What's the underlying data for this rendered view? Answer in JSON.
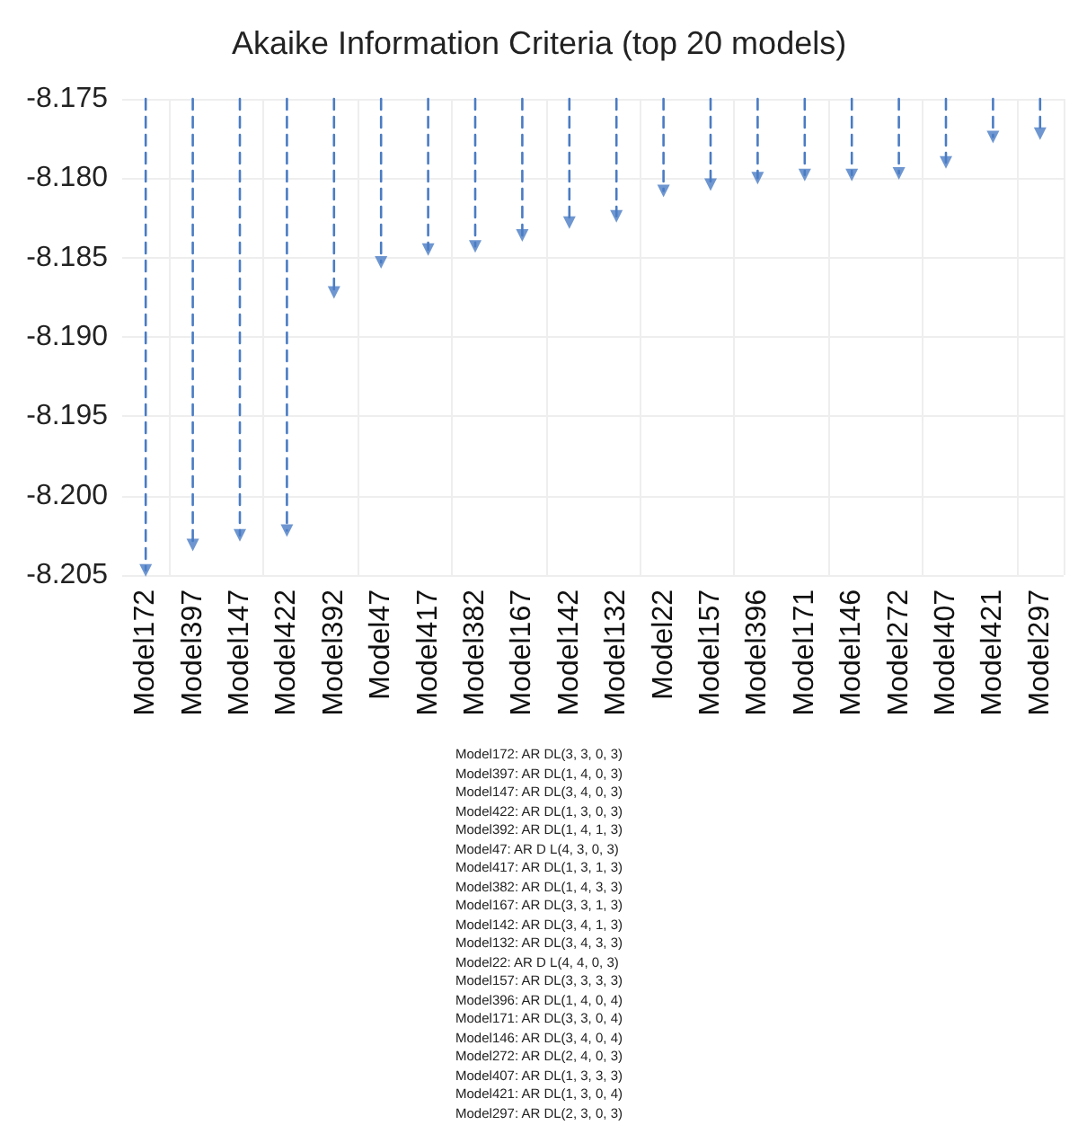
{
  "chart_data": {
    "type": "lollipop",
    "title": "Akaike Information Criteria (top 20 models)",
    "categories": [
      "Model172",
      "Model397",
      "Model147",
      "Model422",
      "Model392",
      "Model47",
      "Model417",
      "Model382",
      "Model167",
      "Model142",
      "Model132",
      "Model22",
      "Model157",
      "Model396",
      "Model171",
      "Model146",
      "Model272",
      "Model407",
      "Model421",
      "Model297"
    ],
    "values": [
      -8.2047,
      -8.2031,
      -8.2025,
      -8.2022,
      -8.1872,
      -8.1853,
      -8.1845,
      -8.1843,
      -8.1836,
      -8.1828,
      -8.1824,
      -8.1808,
      -8.1804,
      -8.18,
      -8.1798,
      -8.1798,
      -8.1797,
      -8.179,
      -8.1774,
      -8.1772
    ],
    "color": "#4a7cc4",
    "ylim": [
      -8.205,
      -8.175
    ],
    "yticks": [
      {
        "value": -8.205,
        "label": "-8.205"
      },
      {
        "value": -8.2,
        "label": "-8.200"
      },
      {
        "value": -8.195,
        "label": "-8.195"
      },
      {
        "value": -8.19,
        "label": "-8.190"
      },
      {
        "value": -8.185,
        "label": "-8.185"
      },
      {
        "value": -8.18,
        "label": "-8.180"
      },
      {
        "value": -8.175,
        "label": "-8.175"
      }
    ],
    "grid": true,
    "marker": "triangle",
    "line_style": "dashed",
    "annotations": [
      "Model172: AR DL(3, 3, 0, 3)",
      "Model397: AR DL(1, 4, 0, 3)",
      "Model147: AR DL(3, 4, 0, 3)",
      "Model422: AR DL(1, 3, 0, 3)",
      "Model392: AR DL(1, 4, 1, 3)",
      "Model47: AR D L(4, 3, 0, 3)",
      "Model417: AR DL(1, 3, 1, 3)",
      "Model382: AR DL(1, 4, 3, 3)",
      "Model167: AR DL(3, 3, 1, 3)",
      "Model142: AR DL(3, 4, 1, 3)",
      "Model132: AR DL(3, 4, 3, 3)",
      "Model22: AR D L(4, 4, 0, 3)",
      "Model157: AR DL(3, 3, 3, 3)",
      "Model396: AR DL(1, 4, 0, 4)",
      "Model171: AR DL(3, 3, 0, 4)",
      "Model146: AR DL(3, 4, 0, 4)",
      "Model272: AR DL(2, 4, 0, 3)",
      "Model407: AR DL(1, 3, 3, 3)",
      "Model421: AR DL(1, 3, 0, 4)",
      "Model297: AR DL(2, 3, 0, 3)"
    ]
  }
}
